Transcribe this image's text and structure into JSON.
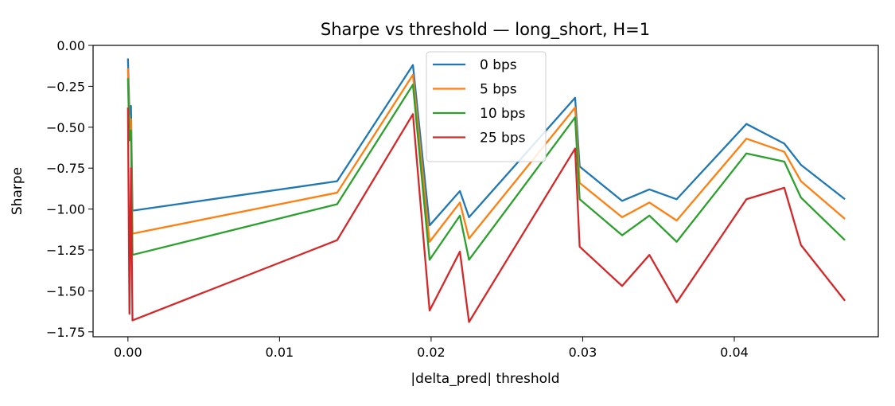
{
  "chart_data": {
    "type": "line",
    "title": "Sharpe vs threshold — long_short, H=1",
    "xlabel": "|delta_pred| threshold",
    "ylabel": "Sharpe",
    "xlim": [
      -0.0023,
      0.0495
    ],
    "ylim": [
      -1.78,
      0.0
    ],
    "xticks": [
      0.0,
      0.01,
      0.02,
      0.03,
      0.04
    ],
    "xtick_labels": [
      "0.00",
      "0.01",
      "0.02",
      "0.03",
      "0.04"
    ],
    "yticks": [
      0.0,
      -0.25,
      -0.5,
      -0.75,
      -1.0,
      -1.25,
      -1.5,
      -1.75
    ],
    "ytick_labels": [
      "0.00",
      "−0.25",
      "−0.50",
      "−0.75",
      "−1.00",
      "−1.25",
      "−1.50",
      "−1.75"
    ],
    "grid": false,
    "legend_position": "top-center",
    "x": [
      0.0,
      0.0001,
      0.0002,
      0.0003,
      0.0138,
      0.0188,
      0.0199,
      0.0219,
      0.0225,
      0.0295,
      0.0298,
      0.0326,
      0.0344,
      0.0362,
      0.0408,
      0.0433,
      0.0444,
      0.0473
    ],
    "series": [
      {
        "name": "0 bps",
        "color": "#1f77b4",
        "values": [
          -0.08,
          -0.42,
          -0.37,
          -1.01,
          -0.83,
          -0.12,
          -1.1,
          -0.89,
          -1.05,
          -0.32,
          -0.74,
          -0.95,
          -0.88,
          -0.94,
          -0.48,
          -0.6,
          -0.73,
          -0.94
        ]
      },
      {
        "name": "5 bps",
        "color": "#ff7f0e",
        "values": [
          -0.14,
          -0.5,
          -0.45,
          -1.15,
          -0.9,
          -0.18,
          -1.2,
          -0.96,
          -1.18,
          -0.38,
          -0.84,
          -1.05,
          -0.96,
          -1.07,
          -0.57,
          -0.65,
          -0.83,
          -1.06
        ]
      },
      {
        "name": "10 bps",
        "color": "#2ca02c",
        "values": [
          -0.2,
          -0.58,
          -0.52,
          -1.28,
          -0.97,
          -0.24,
          -1.31,
          -1.04,
          -1.31,
          -0.44,
          -0.94,
          -1.16,
          -1.04,
          -1.2,
          -0.66,
          -0.71,
          -0.93,
          -1.19
        ]
      },
      {
        "name": "25 bps",
        "color": "#d62728",
        "values": [
          -0.38,
          -1.64,
          -0.75,
          -1.68,
          -1.19,
          -0.42,
          -1.62,
          -1.26,
          -1.69,
          -0.63,
          -1.23,
          -1.47,
          -1.28,
          -1.57,
          -0.94,
          -0.87,
          -1.22,
          -1.56
        ]
      }
    ]
  }
}
